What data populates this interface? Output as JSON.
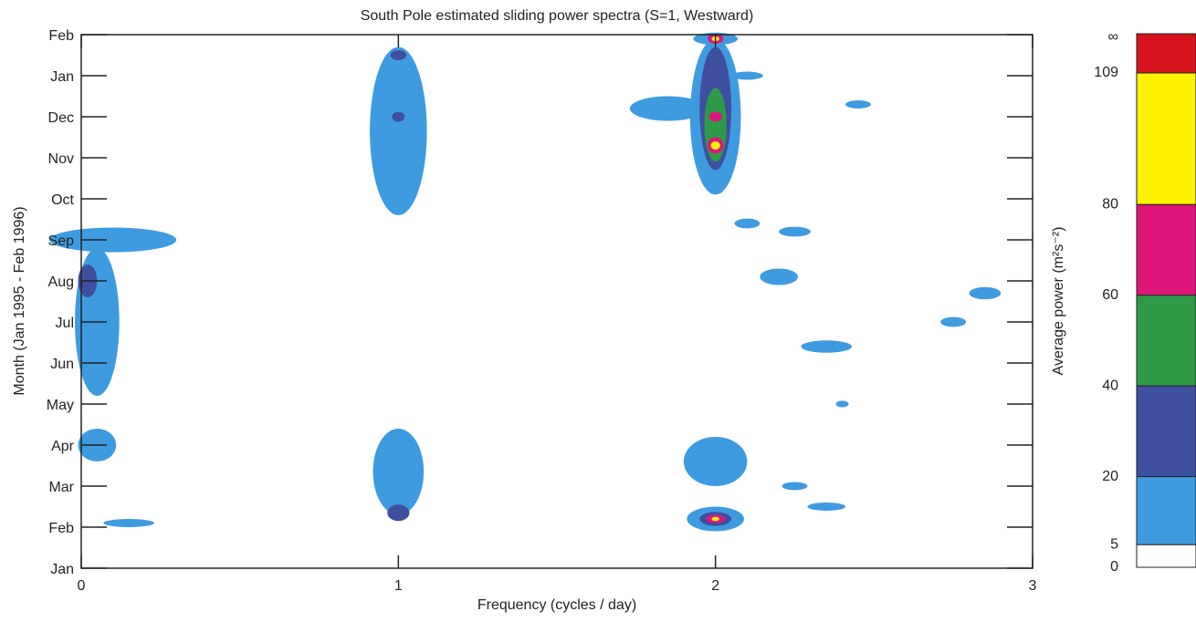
{
  "chart_data": {
    "type": "contour",
    "title": "South Pole estimated sliding power spectra (S=1, Westward)",
    "x_label": "Frequency (cycles / day)",
    "y_label": "Month (Jan 1995 - Feb 1996)",
    "xlim": [
      0,
      3
    ],
    "xticks": [
      0,
      1,
      2,
      3
    ],
    "ylim": [
      0,
      13
    ],
    "yticks": [
      {
        "value": 0,
        "label": "Jan"
      },
      {
        "value": 1,
        "label": "Feb"
      },
      {
        "value": 2,
        "label": "Mar"
      },
      {
        "value": 3,
        "label": "Apr"
      },
      {
        "value": 4,
        "label": "May"
      },
      {
        "value": 5,
        "label": "Jun"
      },
      {
        "value": 6,
        "label": "Jul"
      },
      {
        "value": 7,
        "label": "Aug"
      },
      {
        "value": 8,
        "label": "Sep"
      },
      {
        "value": 9,
        "label": "Oct"
      },
      {
        "value": 10,
        "label": "Nov"
      },
      {
        "value": 11,
        "label": "Dec"
      },
      {
        "value": 12,
        "label": "Jan"
      },
      {
        "value": 13,
        "label": "Feb"
      }
    ],
    "colorbar": {
      "label": "Average power (m²s⁻²)",
      "lim": [
        0,
        109
      ],
      "ticks": [
        0,
        5,
        20,
        40,
        60,
        80,
        109
      ],
      "top_label": "∞",
      "colors": [
        "#ffffff",
        "#3f9be0",
        "#3f4f9f",
        "#2e9a47",
        "#e0157a",
        "#fff200",
        "#d7131e"
      ]
    },
    "blobs": [
      {
        "x": 1.0,
        "y": 10.65,
        "rx": 0.09,
        "ry": 2.05,
        "level": 1
      },
      {
        "x": 1.0,
        "y": 12.5,
        "rx": 0.025,
        "ry": 0.12,
        "level": 2
      },
      {
        "x": 1.0,
        "y": 11.0,
        "rx": 0.02,
        "ry": 0.12,
        "level": 2
      },
      {
        "x": 1.0,
        "y": 2.35,
        "rx": 0.08,
        "ry": 1.05,
        "level": 1
      },
      {
        "x": 1.0,
        "y": 1.35,
        "rx": 0.035,
        "ry": 0.2,
        "level": 2
      },
      {
        "x": 2.0,
        "y": 11.0,
        "rx": 0.08,
        "ry": 1.9,
        "level": 1
      },
      {
        "x": 2.0,
        "y": 12.9,
        "rx": 0.07,
        "ry": 0.15,
        "level": 1
      },
      {
        "x": 1.85,
        "y": 11.2,
        "rx": 0.12,
        "ry": 0.3,
        "level": 1
      },
      {
        "x": 2.0,
        "y": 11.2,
        "rx": 0.05,
        "ry": 1.5,
        "level": 2
      },
      {
        "x": 2.0,
        "y": 10.8,
        "rx": 0.035,
        "ry": 0.9,
        "level": 3
      },
      {
        "x": 2.0,
        "y": 10.3,
        "rx": 0.025,
        "ry": 0.2,
        "level": 4
      },
      {
        "x": 2.0,
        "y": 11.0,
        "rx": 0.02,
        "ry": 0.12,
        "level": 4
      },
      {
        "x": 2.0,
        "y": 12.9,
        "rx": 0.025,
        "ry": 0.12,
        "level": 4
      },
      {
        "x": 2.0,
        "y": 10.3,
        "rx": 0.015,
        "ry": 0.1,
        "level": 5
      },
      {
        "x": 2.0,
        "y": 12.9,
        "rx": 0.012,
        "ry": 0.06,
        "level": 5
      },
      {
        "x": 2.0,
        "y": 2.6,
        "rx": 0.1,
        "ry": 0.6,
        "level": 1
      },
      {
        "x": 2.0,
        "y": 1.2,
        "rx": 0.09,
        "ry": 0.3,
        "level": 1
      },
      {
        "x": 2.0,
        "y": 1.2,
        "rx": 0.05,
        "ry": 0.17,
        "level": 2
      },
      {
        "x": 2.0,
        "y": 1.2,
        "rx": 0.03,
        "ry": 0.1,
        "level": 4
      },
      {
        "x": 2.0,
        "y": 1.2,
        "rx": 0.012,
        "ry": 0.05,
        "level": 5
      },
      {
        "x": 0.05,
        "y": 6.0,
        "rx": 0.07,
        "ry": 1.8,
        "level": 1
      },
      {
        "x": 0.1,
        "y": 8.0,
        "rx": 0.2,
        "ry": 0.3,
        "level": 1
      },
      {
        "x": 0.05,
        "y": 3.0,
        "rx": 0.06,
        "ry": 0.4,
        "level": 1
      },
      {
        "x": 0.15,
        "y": 1.1,
        "rx": 0.08,
        "ry": 0.1,
        "level": 1
      },
      {
        "x": 0.02,
        "y": 7.0,
        "rx": 0.03,
        "ry": 0.4,
        "level": 2
      },
      {
        "x": 2.2,
        "y": 7.1,
        "rx": 0.06,
        "ry": 0.2,
        "level": 1
      },
      {
        "x": 2.35,
        "y": 5.4,
        "rx": 0.08,
        "ry": 0.15,
        "level": 1
      },
      {
        "x": 2.75,
        "y": 6.0,
        "rx": 0.04,
        "ry": 0.12,
        "level": 1
      },
      {
        "x": 2.85,
        "y": 6.7,
        "rx": 0.05,
        "ry": 0.15,
        "level": 1
      },
      {
        "x": 2.1,
        "y": 12.0,
        "rx": 0.05,
        "ry": 0.1,
        "level": 1
      },
      {
        "x": 2.45,
        "y": 11.3,
        "rx": 0.04,
        "ry": 0.1,
        "level": 1
      },
      {
        "x": 2.25,
        "y": 8.2,
        "rx": 0.05,
        "ry": 0.12,
        "level": 1
      },
      {
        "x": 2.4,
        "y": 4.0,
        "rx": 0.02,
        "ry": 0.08,
        "level": 1
      },
      {
        "x": 2.25,
        "y": 2.0,
        "rx": 0.04,
        "ry": 0.1,
        "level": 1
      },
      {
        "x": 2.35,
        "y": 1.5,
        "rx": 0.06,
        "ry": 0.1,
        "level": 1
      },
      {
        "x": 2.1,
        "y": 8.4,
        "rx": 0.04,
        "ry": 0.12,
        "level": 1
      }
    ]
  }
}
